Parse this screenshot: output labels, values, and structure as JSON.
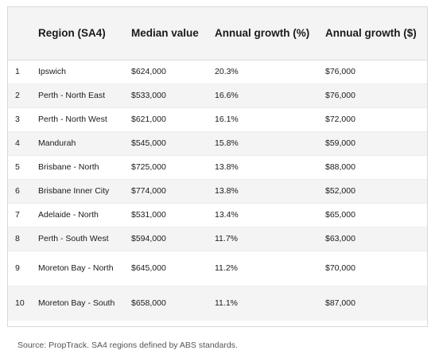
{
  "table": {
    "headers": {
      "rank": "",
      "region": "Region (SA4)",
      "median": "Median value",
      "growth_pct": "Annual growth (%)",
      "growth_dollar": "Annual growth ($)"
    },
    "rows": [
      {
        "rank": "1",
        "region": "Ipswich",
        "median": "$624,000",
        "growth_pct": "20.3%",
        "growth_dollar": "$76,000"
      },
      {
        "rank": "2",
        "region": "Perth - North East",
        "median": "$533,000",
        "growth_pct": "16.6%",
        "growth_dollar": "$76,000"
      },
      {
        "rank": "3",
        "region": "Perth - North West",
        "median": "$621,000",
        "growth_pct": "16.1%",
        "growth_dollar": "$72,000"
      },
      {
        "rank": "4",
        "region": "Mandurah",
        "median": "$545,000",
        "growth_pct": "15.8%",
        "growth_dollar": "$59,000"
      },
      {
        "rank": "5",
        "region": "Brisbane - North",
        "median": "$725,000",
        "growth_pct": "13.8%",
        "growth_dollar": "$88,000"
      },
      {
        "rank": "6",
        "region": "Brisbane Inner City",
        "median": "$774,000",
        "growth_pct": "13.8%",
        "growth_dollar": "$52,000"
      },
      {
        "rank": "7",
        "region": "Adelaide - North",
        "median": "$531,000",
        "growth_pct": "13.4%",
        "growth_dollar": "$65,000"
      },
      {
        "rank": "8",
        "region": "Perth - South West",
        "median": "$594,000",
        "growth_pct": "11.7%",
        "growth_dollar": "$63,000"
      },
      {
        "rank": "9",
        "region": "Moreton Bay - North",
        "median": "$645,000",
        "growth_pct": "11.2%",
        "growth_dollar": "$70,000"
      },
      {
        "rank": "10",
        "region": "Moreton Bay - South",
        "median": "$658,000",
        "growth_pct": "11.1%",
        "growth_dollar": "$87,000"
      }
    ]
  },
  "source": "Source: PropTrack. SA4 regions defined by ABS standards."
}
